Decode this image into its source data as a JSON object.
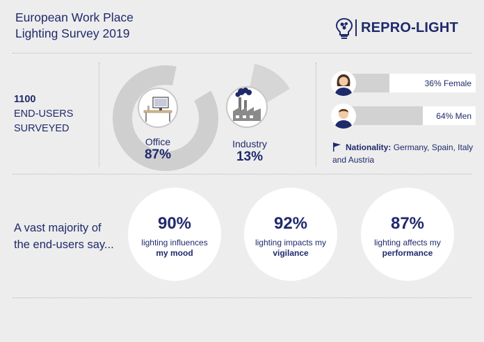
{
  "header": {
    "title_line1": "European Work Place",
    "title_line2": "Lighting Survey 2019",
    "logo_text": "REPRO-LIGHT",
    "logo_icon": "lightbulb-molecule-icon"
  },
  "survey": {
    "count": "1100",
    "line2": "END-USERS",
    "line3": "SURVEYED"
  },
  "sectors": [
    {
      "label": "Office",
      "percent": "87%",
      "value": 87,
      "icon": "desk-computer-icon"
    },
    {
      "label": "Industry",
      "percent": "13%",
      "value": 13,
      "icon": "factory-icon"
    }
  ],
  "gender": [
    {
      "label": "36% Female",
      "value": 36,
      "icon": "female-avatar-icon"
    },
    {
      "label": "64% Men",
      "value": 64,
      "icon": "male-avatar-icon"
    }
  ],
  "nationality": {
    "label": "Nationality:",
    "text": "Germany, Spain, Italy and Austria",
    "icon": "flag-icon"
  },
  "majority": {
    "line1": "A vast majority of",
    "line2": "the end-users say..."
  },
  "stats": [
    {
      "percent": "90%",
      "text": "lighting influences",
      "emphasis": "my mood"
    },
    {
      "percent": "92%",
      "text": "lighting impacts my",
      "emphasis": "vigilance"
    },
    {
      "percent": "87%",
      "text": "lighting affects my",
      "emphasis": "performance"
    }
  ],
  "colors": {
    "navy": "#1f2a6b",
    "background": "#ededed",
    "gray_bar": "#d2d2d2",
    "pie_gray": "#cfcfcf"
  }
}
